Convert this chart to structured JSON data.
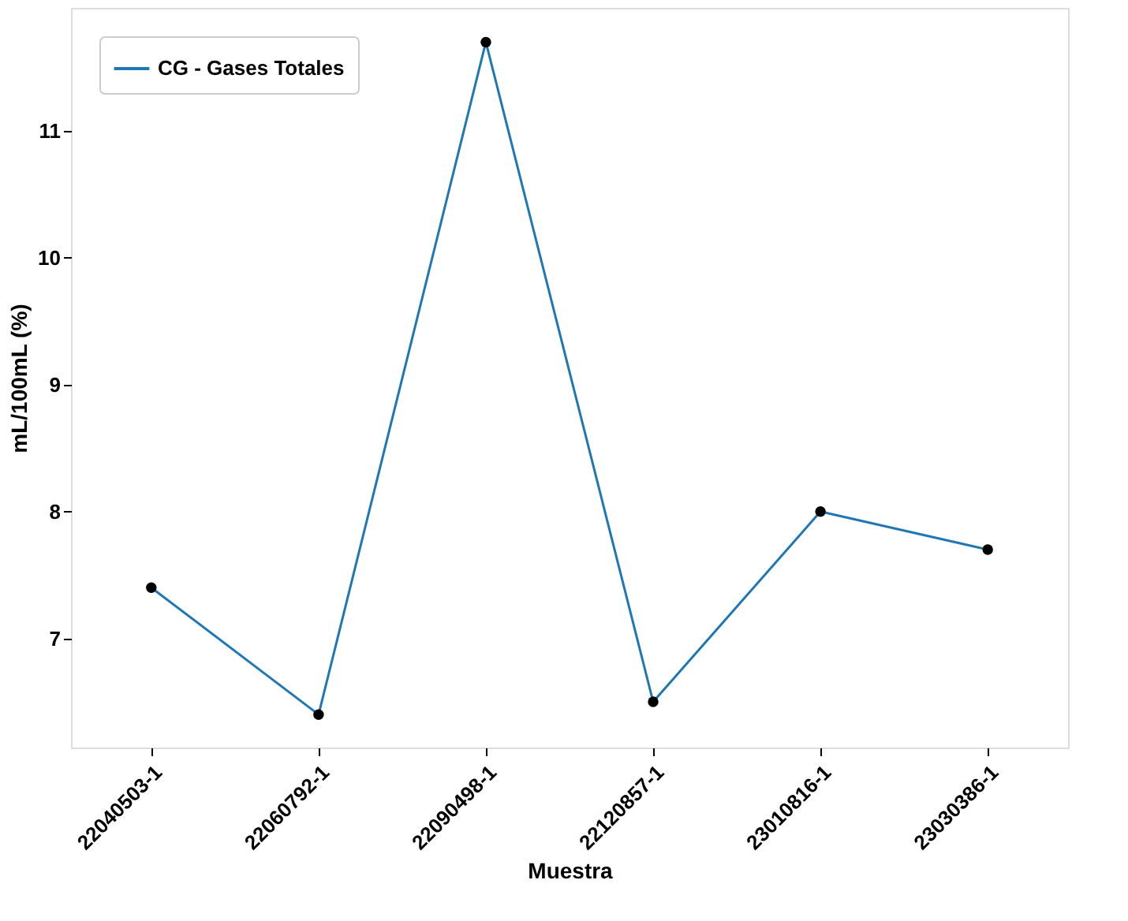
{
  "chart_data": {
    "type": "line",
    "xlabel": "Muestra",
    "ylabel": "mL/100mL (%)",
    "categories": [
      "22040503-1",
      "22060792-1",
      "22090498-1",
      "22120857-1",
      "23010816-1",
      "23030386-1"
    ],
    "series": [
      {
        "name": "CG - Gases Totales",
        "color": "#1f77b4",
        "values": [
          7.4,
          6.4,
          11.7,
          6.5,
          8.0,
          7.7
        ]
      }
    ],
    "ylim": [
      6.14,
      11.97
    ],
    "yticks": [
      7,
      8,
      9,
      10,
      11
    ],
    "marker": "circle",
    "grid": false,
    "legend": "top left"
  }
}
